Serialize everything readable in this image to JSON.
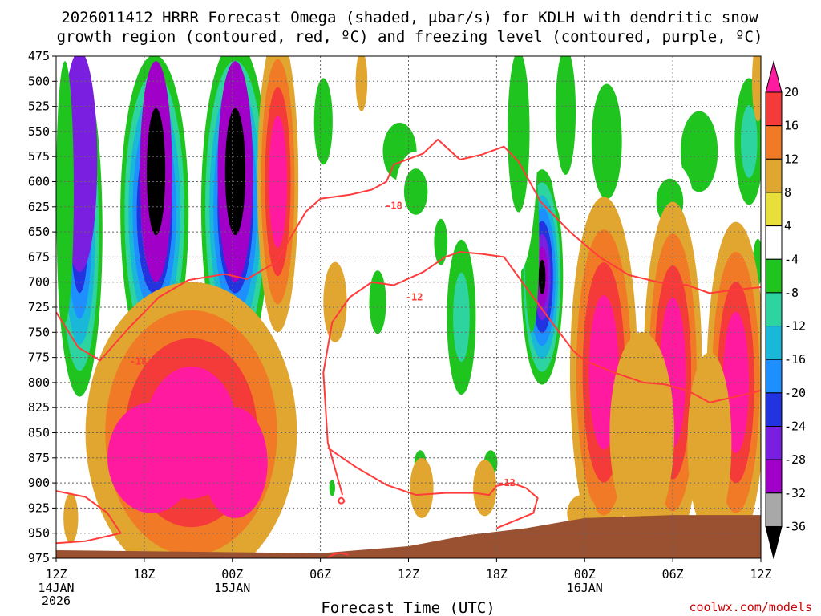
{
  "page": {
    "title_line1": "2026011412 HRRR Forecast Omega (shaded, μbar/s) for KDLH with dendritic snow",
    "title_line2": "growth region (contoured, red, ºC) and freezing level (contoured, purple, ºC)",
    "credit": "coolwx.com/models"
  },
  "chart_data": {
    "type": "heatmap",
    "title": "2026011412 HRRR Forecast Omega (shaded, μbar/s) for KDLH with dendritic snow growth region (contoured, red, ºC) and freezing level (contoured, purple, ºC)",
    "xlabel": "Forecast Time (UTC)",
    "ylabel": "",
    "x_unit": "forecast hour from 2026-01-14 12Z",
    "xlim": [
      0,
      48
    ],
    "ylim": [
      975,
      475
    ],
    "y_scale": "pressure (hPa), decreasing upward",
    "x_ticks": [
      {
        "hour": 0,
        "label": "12Z",
        "date": "14JAN",
        "year": "2026"
      },
      {
        "hour": 6,
        "label": "18Z",
        "date": "",
        "year": ""
      },
      {
        "hour": 12,
        "label": "00Z",
        "date": "15JAN",
        "year": ""
      },
      {
        "hour": 18,
        "label": "06Z",
        "date": "",
        "year": ""
      },
      {
        "hour": 24,
        "label": "12Z",
        "date": "",
        "year": ""
      },
      {
        "hour": 30,
        "label": "18Z",
        "date": "",
        "year": ""
      },
      {
        "hour": 36,
        "label": "00Z",
        "date": "16JAN",
        "year": ""
      },
      {
        "hour": 42,
        "label": "06Z",
        "date": "",
        "year": ""
      },
      {
        "hour": 48,
        "label": "12Z",
        "date": "",
        "year": ""
      }
    ],
    "y_ticks": [
      "475",
      "500",
      "525",
      "550",
      "575",
      "600",
      "625",
      "650",
      "675",
      "700",
      "725",
      "750",
      "775",
      "800",
      "825",
      "850",
      "875",
      "900",
      "925",
      "950",
      "975"
    ],
    "grid": true,
    "colorbar": {
      "placement": "right",
      "labels": [
        "20",
        "16",
        "12",
        "8",
        "4",
        "-4",
        "-8",
        "-12",
        "-16",
        "-20",
        "-24",
        "-28",
        "-32",
        "-36"
      ],
      "colors": [
        "#ff1aa0",
        "#f53a3a",
        "#f07a25",
        "#e0a630",
        "#e8df3a",
        "#ffffff",
        "#1fc41f",
        "#2dd4a0",
        "#19b8d8",
        "#1e8fff",
        "#2233e0",
        "#7a1ee0",
        "#a000c8",
        "#a8a8a8",
        "#000000"
      ]
    },
    "shaded_regions": [
      {
        "omega_min": -24,
        "x": [
          0.3,
          3.0
        ],
        "y": [
          480,
          820
        ]
      },
      {
        "omega_min": -36,
        "x": [
          4.5,
          9.0
        ],
        "y": [
          475,
          800
        ]
      },
      {
        "omega_min": -36,
        "x": [
          10.0,
          14.5
        ],
        "y": [
          475,
          800
        ]
      },
      {
        "omega_min": 20,
        "x": [
          14.5,
          16.5
        ],
        "y": [
          475,
          760
        ]
      },
      {
        "omega_min": -36,
        "x": [
          32.4,
          34.0
        ],
        "y": [
          610,
          780
        ]
      },
      {
        "omega_max": 20,
        "x": [
          2.5,
          15.5
        ],
        "y": [
          750,
          975
        ]
      },
      {
        "omega_max": 20,
        "x": [
          35.0,
          39.0
        ],
        "y": [
          620,
          950
        ]
      },
      {
        "omega_max": 20,
        "x": [
          40.5,
          43.5
        ],
        "y": [
          630,
          940
        ]
      },
      {
        "omega_max": 20,
        "x": [
          45.0,
          48.0
        ],
        "y": [
          650,
          950
        ]
      }
    ],
    "contours": [
      {
        "name": "-18",
        "color": "#ff3b3b",
        "points": [
          [
            0,
            730
          ],
          [
            1.5,
            765
          ],
          [
            3,
            778
          ],
          [
            5,
            745
          ],
          [
            7,
            715
          ],
          [
            9,
            698
          ],
          [
            11.5,
            692
          ],
          [
            13,
            697
          ],
          [
            15,
            680
          ],
          [
            17,
            630
          ],
          [
            18,
            617
          ],
          [
            20,
            613
          ],
          [
            21.5,
            608
          ],
          [
            22.5,
            600
          ],
          [
            23,
            583
          ],
          [
            25,
            572
          ],
          [
            26,
            558
          ],
          [
            27.5,
            578
          ],
          [
            29,
            573
          ],
          [
            30.5,
            565
          ],
          [
            31.5,
            580
          ],
          [
            33,
            620
          ],
          [
            35,
            650
          ],
          [
            37,
            675
          ],
          [
            39,
            693
          ],
          [
            41,
            700
          ],
          [
            43,
            703
          ],
          [
            44.5,
            711
          ],
          [
            46,
            708
          ],
          [
            48,
            705
          ]
        ]
      },
      {
        "name": "-12",
        "color": "#ff3b3b",
        "points": [
          [
            19.5,
            912
          ],
          [
            18.5,
            860
          ],
          [
            18.2,
            790
          ],
          [
            18.8,
            740
          ],
          [
            20,
            715
          ],
          [
            21.5,
            700
          ],
          [
            23,
            703
          ],
          [
            25,
            690
          ],
          [
            26.5,
            675
          ],
          [
            27.5,
            670
          ],
          [
            29,
            672
          ],
          [
            30.5,
            675
          ],
          [
            32,
            705
          ],
          [
            33.5,
            735
          ],
          [
            35.2,
            768
          ],
          [
            36,
            778
          ],
          [
            38,
            790
          ],
          [
            40,
            800
          ],
          [
            41.5,
            802
          ],
          [
            43,
            808
          ],
          [
            44.5,
            820
          ],
          [
            46,
            815
          ],
          [
            47.5,
            810
          ],
          [
            48,
            808
          ]
        ]
      },
      {
        "name": "-12 low",
        "color": "#ff3b3b",
        "points": [
          [
            18.5,
            865
          ],
          [
            20.5,
            885
          ],
          [
            22.5,
            902
          ],
          [
            24.5,
            912
          ],
          [
            26.5,
            910
          ],
          [
            28.5,
            910
          ],
          [
            29.5,
            912
          ],
          [
            30,
            903
          ],
          [
            31,
            900
          ],
          [
            32,
            905
          ],
          [
            32.8,
            915
          ],
          [
            32.5,
            930
          ],
          [
            30,
            945
          ]
        ]
      },
      {
        "name": "",
        "color": "#ff3b3b",
        "points": [
          [
            0,
            908
          ],
          [
            2,
            914
          ],
          [
            3.5,
            930
          ],
          [
            4.4,
            950
          ],
          [
            2,
            958
          ],
          [
            0,
            960
          ]
        ]
      }
    ],
    "contour_labels": [
      {
        "text": "-18",
        "x": 22.4,
        "y": 624
      },
      {
        "text": "-18",
        "x": 5.0,
        "y": 779
      },
      {
        "text": "-12",
        "x": 23.8,
        "y": 715
      },
      {
        "text": "-12",
        "x": 30.1,
        "y": 900
      }
    ],
    "terrain": {
      "color": "#9a5131",
      "points": [
        [
          0,
          967
        ],
        [
          18,
          970
        ],
        [
          24,
          963
        ],
        [
          28,
          952
        ],
        [
          32,
          945
        ],
        [
          36,
          935
        ],
        [
          42,
          932
        ],
        [
          48,
          932
        ]
      ]
    }
  }
}
